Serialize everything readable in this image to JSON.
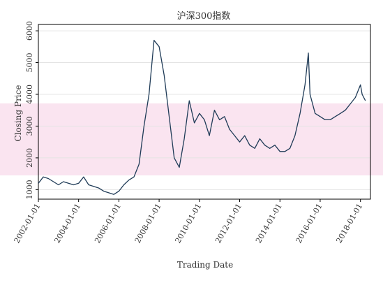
{
  "chart_data": {
    "type": "line",
    "title": "沪深300指数",
    "xlabel": "Trading Date",
    "ylabel": "Closing Price",
    "xlim": [
      "2002-01-01",
      "2018-07-01"
    ],
    "ylim": [
      700,
      6200
    ],
    "x_ticks": [
      "2002-01-01",
      "2004-01-01",
      "2006-01-01",
      "2008-01-01",
      "2010-01-01",
      "2012-01-01",
      "2014-01-01",
      "2016-01-01",
      "2018-01-01"
    ],
    "y_ticks": [
      1000,
      2000,
      3000,
      4000,
      5000,
      6000
    ],
    "grid": "horizontal",
    "colors": {
      "line": "#1f3b57",
      "highlight_band": "#f7d6e8",
      "frame": "#000000"
    },
    "series": [
      {
        "x": [
          "2002-01-01",
          "2002-04-01",
          "2002-07-01",
          "2002-10-01",
          "2003-01-01",
          "2003-04-01",
          "2003-07-01",
          "2003-10-01",
          "2004-01-01",
          "2004-04-01",
          "2004-07-01",
          "2004-10-01",
          "2005-01-01",
          "2005-04-01",
          "2005-07-01",
          "2005-10-01",
          "2006-01-01",
          "2006-04-01",
          "2006-07-01",
          "2006-10-01",
          "2007-01-01",
          "2007-04-01",
          "2007-07-01",
          "2007-10-01",
          "2008-01-01",
          "2008-04-01",
          "2008-07-01",
          "2008-10-01",
          "2009-01-01",
          "2009-04-01",
          "2009-07-01",
          "2009-10-01",
          "2010-01-01",
          "2010-04-01",
          "2010-07-01",
          "2010-10-01",
          "2011-01-01",
          "2011-04-01",
          "2011-07-01",
          "2011-10-01",
          "2012-01-01",
          "2012-04-01",
          "2012-07-01",
          "2012-10-01",
          "2013-01-01",
          "2013-04-01",
          "2013-07-01",
          "2013-10-01",
          "2014-01-01",
          "2014-04-01",
          "2014-07-01",
          "2014-10-01",
          "2015-01-01",
          "2015-04-01",
          "2015-06-01",
          "2015-07-01",
          "2015-10-01",
          "2016-01-01",
          "2016-04-01",
          "2016-07-01",
          "2016-10-01",
          "2017-01-01",
          "2017-04-01",
          "2017-07-01",
          "2017-10-01",
          "2018-01-01",
          "2018-02-01",
          "2018-04-01"
        ],
        "y": [
          1200,
          1400,
          1350,
          1250,
          1150,
          1250,
          1200,
          1150,
          1200,
          1400,
          1150,
          1100,
          1050,
          950,
          900,
          850,
          950,
          1150,
          1300,
          1400,
          1800,
          3000,
          4000,
          5700,
          5500,
          4600,
          3300,
          2000,
          1700,
          2600,
          3800,
          3100,
          3400,
          3200,
          2700,
          3500,
          3200,
          3300,
          2900,
          2700,
          2500,
          2700,
          2400,
          2300,
          2600,
          2400,
          2300,
          2400,
          2200,
          2200,
          2300,
          2700,
          3400,
          4300,
          5300,
          4000,
          3400,
          3300,
          3200,
          3200,
          3300,
          3400,
          3500,
          3700,
          3900,
          4300,
          4000,
          3800
        ]
      }
    ]
  }
}
